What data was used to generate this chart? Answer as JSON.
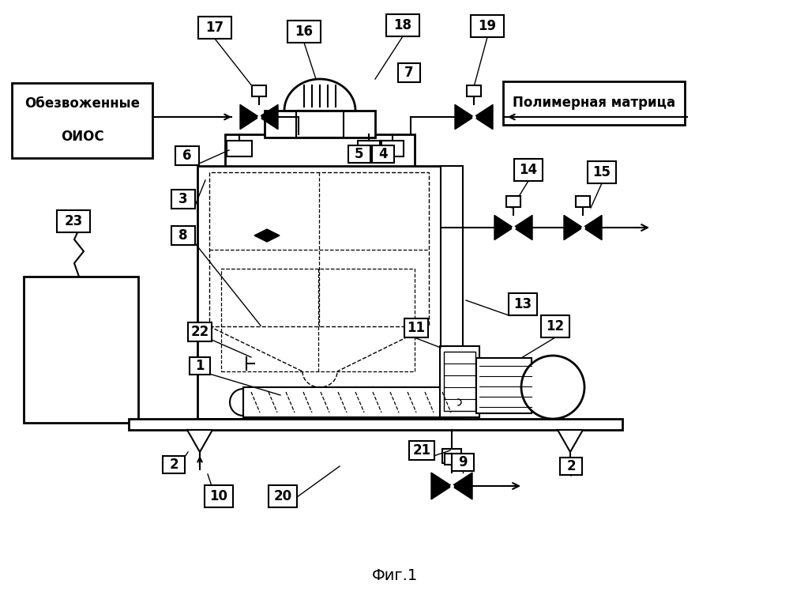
{
  "bg_color": "#ffffff",
  "label_left": "Обезвоженные\n\nОИОС",
  "label_right": "Полимерная матрица",
  "fig_label": "Фиг.1"
}
